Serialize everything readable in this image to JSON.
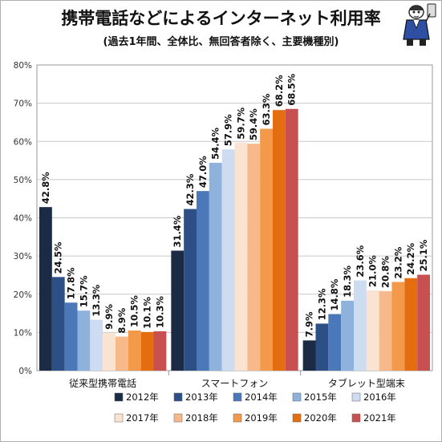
{
  "title": "携帯電話などによるインターネット利用率",
  "subtitle": "(過去1年間、全体比、無回答者除く、主要機種別)",
  "chart_data": {
    "type": "bar",
    "categories": [
      "従来型携帯電話",
      "スマートフォン",
      "タブレット型端末"
    ],
    "ylim": [
      0,
      80
    ],
    "ytick_step": 10,
    "y_tick_suffix": "%",
    "grid": true,
    "legend_position": "bottom",
    "series": [
      {
        "name": "2012年",
        "color": "#1b2b45",
        "values": [
          42.8,
          31.4,
          7.9
        ]
      },
      {
        "name": "2013年",
        "color": "#2c4f86",
        "values": [
          24.5,
          42.3,
          12.3
        ]
      },
      {
        "name": "2014年",
        "color": "#4a78b8",
        "values": [
          17.8,
          47.0,
          14.8
        ]
      },
      {
        "name": "2015年",
        "color": "#8eb2dc",
        "values": [
          15.7,
          54.4,
          18.3
        ]
      },
      {
        "name": "2016年",
        "color": "#cddcf0",
        "values": [
          13.3,
          57.9,
          23.6
        ]
      },
      {
        "name": "2017年",
        "color": "#fbe3d2",
        "values": [
          9.9,
          59.7,
          21.0
        ]
      },
      {
        "name": "2018年",
        "color": "#f8b98a",
        "values": [
          8.9,
          59.4,
          20.8
        ]
      },
      {
        "name": "2019年",
        "color": "#f29a4a",
        "values": [
          10.5,
          63.3,
          23.2
        ]
      },
      {
        "name": "2020年",
        "color": "#e36d0f",
        "values": [
          10.1,
          68.2,
          24.2
        ]
      },
      {
        "name": "2021年",
        "color": "#c95050",
        "values": [
          10.3,
          68.5,
          25.1
        ]
      }
    ]
  }
}
